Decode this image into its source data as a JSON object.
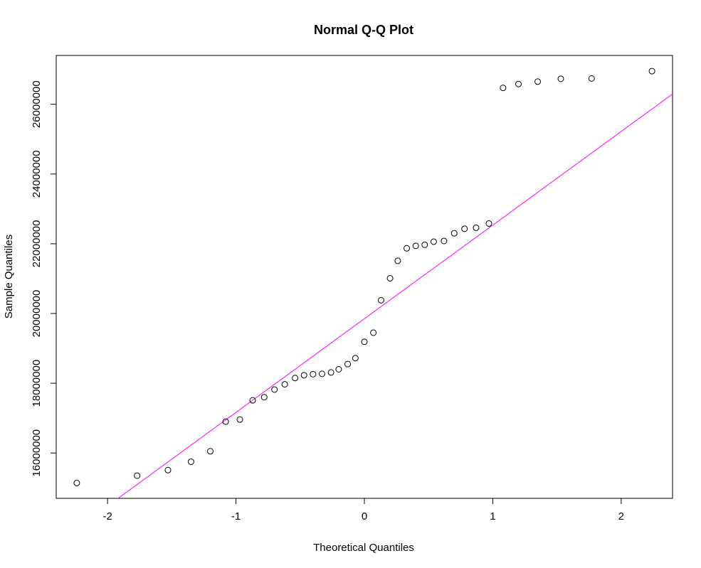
{
  "chart_data": {
    "type": "scatter",
    "title": "Normal Q-Q Plot",
    "xlabel": "Theoretical Quantiles",
    "ylabel": "Sample Quantiles",
    "xlim": [
      -2.4,
      2.4
    ],
    "ylim": [
      14700000,
      27400000
    ],
    "x_ticks": [
      -2,
      -1,
      0,
      1,
      2
    ],
    "x_tick_labels": [
      "-2",
      "-1",
      "0",
      "1",
      "2"
    ],
    "y_ticks": [
      16000000,
      18000000,
      20000000,
      22000000,
      24000000,
      26000000
    ],
    "y_tick_labels": [
      "16000000",
      "18000000",
      "20000000",
      "22000000",
      "24000000",
      "26000000"
    ],
    "grid": false,
    "points": [
      {
        "x": -2.24,
        "y": 15140000
      },
      {
        "x": -1.77,
        "y": 15350000
      },
      {
        "x": -1.53,
        "y": 15510000
      },
      {
        "x": -1.35,
        "y": 15750000
      },
      {
        "x": -1.2,
        "y": 16050000
      },
      {
        "x": -1.08,
        "y": 16900000
      },
      {
        "x": -0.97,
        "y": 16960000
      },
      {
        "x": -0.87,
        "y": 17510000
      },
      {
        "x": -0.78,
        "y": 17600000
      },
      {
        "x": -0.7,
        "y": 17820000
      },
      {
        "x": -0.62,
        "y": 17970000
      },
      {
        "x": -0.54,
        "y": 18150000
      },
      {
        "x": -0.47,
        "y": 18230000
      },
      {
        "x": -0.4,
        "y": 18260000
      },
      {
        "x": -0.33,
        "y": 18270000
      },
      {
        "x": -0.26,
        "y": 18310000
      },
      {
        "x": -0.2,
        "y": 18400000
      },
      {
        "x": -0.13,
        "y": 18550000
      },
      {
        "x": -0.07,
        "y": 18720000
      },
      {
        "x": 0.0,
        "y": 19190000
      },
      {
        "x": 0.07,
        "y": 19450000
      },
      {
        "x": 0.13,
        "y": 20380000
      },
      {
        "x": 0.2,
        "y": 21010000
      },
      {
        "x": 0.26,
        "y": 21510000
      },
      {
        "x": 0.33,
        "y": 21870000
      },
      {
        "x": 0.4,
        "y": 21940000
      },
      {
        "x": 0.47,
        "y": 21970000
      },
      {
        "x": 0.54,
        "y": 22060000
      },
      {
        "x": 0.62,
        "y": 22080000
      },
      {
        "x": 0.7,
        "y": 22300000
      },
      {
        "x": 0.78,
        "y": 22430000
      },
      {
        "x": 0.87,
        "y": 22460000
      },
      {
        "x": 0.97,
        "y": 22580000
      },
      {
        "x": 1.08,
        "y": 26470000
      },
      {
        "x": 1.2,
        "y": 26580000
      },
      {
        "x": 1.35,
        "y": 26650000
      },
      {
        "x": 1.53,
        "y": 26730000
      },
      {
        "x": 1.77,
        "y": 26740000
      },
      {
        "x": 2.24,
        "y": 26950000
      }
    ],
    "reference_line": {
      "slope": 2685000,
      "intercept": 19850000,
      "color": "#ff00ff"
    },
    "point_color": "#000000"
  }
}
